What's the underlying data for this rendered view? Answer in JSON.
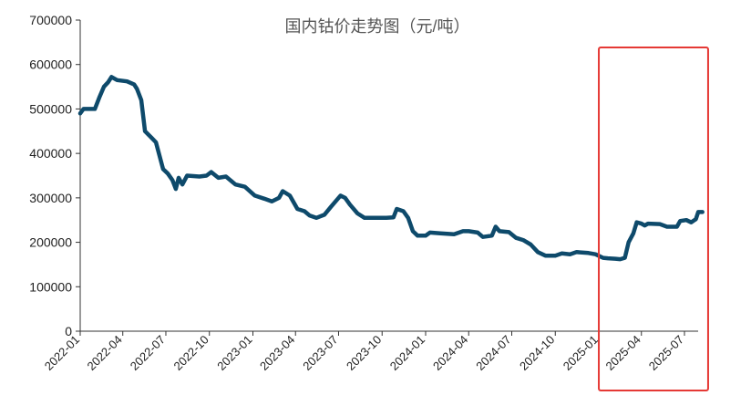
{
  "chart_data": {
    "type": "line",
    "title": "国内钴价走势图（元/吨）",
    "xlabel": "",
    "ylabel": "",
    "ylim": [
      0,
      700000
    ],
    "yticks": [
      "0",
      "100000",
      "200000",
      "300000",
      "400000",
      "500000",
      "600000",
      "700000"
    ],
    "xticks": [
      "2022-01",
      "2022-04",
      "2022-07",
      "2022-10",
      "2023-01",
      "2023-04",
      "2023-07",
      "2023-10",
      "2024-01",
      "2024-04",
      "2024-07",
      "2024-10",
      "2025-01",
      "2025-04",
      "2025-07"
    ],
    "grid": false,
    "legend": "none",
    "series": [
      {
        "color": "#0e4a6b",
        "points": [
          [
            "2022-01-01",
            490000
          ],
          [
            "2022-01-08",
            500000
          ],
          [
            "2022-02-01",
            500000
          ],
          [
            "2022-02-10",
            525000
          ],
          [
            "2022-02-20",
            550000
          ],
          [
            "2022-03-01",
            560000
          ],
          [
            "2022-03-08",
            572000
          ],
          [
            "2022-03-20",
            565000
          ],
          [
            "2022-04-10",
            562000
          ],
          [
            "2022-04-25",
            555000
          ],
          [
            "2022-05-01",
            545000
          ],
          [
            "2022-05-10",
            520000
          ],
          [
            "2022-05-18",
            450000
          ],
          [
            "2022-06-01",
            435000
          ],
          [
            "2022-06-10",
            425000
          ],
          [
            "2022-06-25",
            365000
          ],
          [
            "2022-07-05",
            355000
          ],
          [
            "2022-07-15",
            340000
          ],
          [
            "2022-07-22",
            320000
          ],
          [
            "2022-07-28",
            345000
          ],
          [
            "2022-08-05",
            330000
          ],
          [
            "2022-08-15",
            350000
          ],
          [
            "2022-09-10",
            348000
          ],
          [
            "2022-09-25",
            350000
          ],
          [
            "2022-10-05",
            358000
          ],
          [
            "2022-10-20",
            345000
          ],
          [
            "2022-11-05",
            348000
          ],
          [
            "2022-11-25",
            330000
          ],
          [
            "2022-12-15",
            325000
          ],
          [
            "2023-01-05",
            305000
          ],
          [
            "2023-01-25",
            298000
          ],
          [
            "2023-02-10",
            292000
          ],
          [
            "2023-02-25",
            300000
          ],
          [
            "2023-03-05",
            315000
          ],
          [
            "2023-03-20",
            305000
          ],
          [
            "2023-04-05",
            275000
          ],
          [
            "2023-04-20",
            270000
          ],
          [
            "2023-05-01",
            260000
          ],
          [
            "2023-05-15",
            255000
          ],
          [
            "2023-06-01",
            262000
          ],
          [
            "2023-06-15",
            280000
          ],
          [
            "2023-07-05",
            305000
          ],
          [
            "2023-07-15",
            300000
          ],
          [
            "2023-07-25",
            285000
          ],
          [
            "2023-08-10",
            265000
          ],
          [
            "2023-08-25",
            255000
          ],
          [
            "2023-09-10",
            255000
          ],
          [
            "2023-10-10",
            255000
          ],
          [
            "2023-10-25",
            256000
          ],
          [
            "2023-11-01",
            275000
          ],
          [
            "2023-11-15",
            270000
          ],
          [
            "2023-11-25",
            255000
          ],
          [
            "2023-12-05",
            225000
          ],
          [
            "2023-12-15",
            215000
          ],
          [
            "2024-01-01",
            215000
          ],
          [
            "2024-01-10",
            222000
          ],
          [
            "2024-02-01",
            220000
          ],
          [
            "2024-03-01",
            218000
          ],
          [
            "2024-03-20",
            225000
          ],
          [
            "2024-04-01",
            225000
          ],
          [
            "2024-04-20",
            222000
          ],
          [
            "2024-05-01",
            212000
          ],
          [
            "2024-05-20",
            215000
          ],
          [
            "2024-05-28",
            235000
          ],
          [
            "2024-06-05",
            225000
          ],
          [
            "2024-06-25",
            223000
          ],
          [
            "2024-07-10",
            210000
          ],
          [
            "2024-07-25",
            205000
          ],
          [
            "2024-08-10",
            195000
          ],
          [
            "2024-08-25",
            178000
          ],
          [
            "2024-09-10",
            170000
          ],
          [
            "2024-10-01",
            170000
          ],
          [
            "2024-10-15",
            175000
          ],
          [
            "2024-11-01",
            173000
          ],
          [
            "2024-11-15",
            178000
          ],
          [
            "2024-12-10",
            176000
          ],
          [
            "2024-12-25",
            173000
          ],
          [
            "2025-01-10",
            165000
          ],
          [
            "2025-01-20",
            164000
          ],
          [
            "2025-02-05",
            163000
          ],
          [
            "2025-02-15",
            162000
          ],
          [
            "2025-02-25",
            165000
          ],
          [
            "2025-03-05",
            200000
          ],
          [
            "2025-03-15",
            220000
          ],
          [
            "2025-03-22",
            245000
          ],
          [
            "2025-04-01",
            242000
          ],
          [
            "2025-04-08",
            238000
          ],
          [
            "2025-04-15",
            242000
          ],
          [
            "2025-05-10",
            241000
          ],
          [
            "2025-05-25",
            235000
          ],
          [
            "2025-06-15",
            235000
          ],
          [
            "2025-06-22",
            248000
          ],
          [
            "2025-07-05",
            250000
          ],
          [
            "2025-07-15",
            245000
          ],
          [
            "2025-07-25",
            252000
          ],
          [
            "2025-07-30",
            268000
          ],
          [
            "2025-08-08",
            268000
          ]
        ]
      }
    ],
    "annotations": [
      {
        "type": "rectangle",
        "color": "#e53935",
        "x_range": [
          "2025-01-01",
          "2025-08-20"
        ]
      }
    ]
  }
}
